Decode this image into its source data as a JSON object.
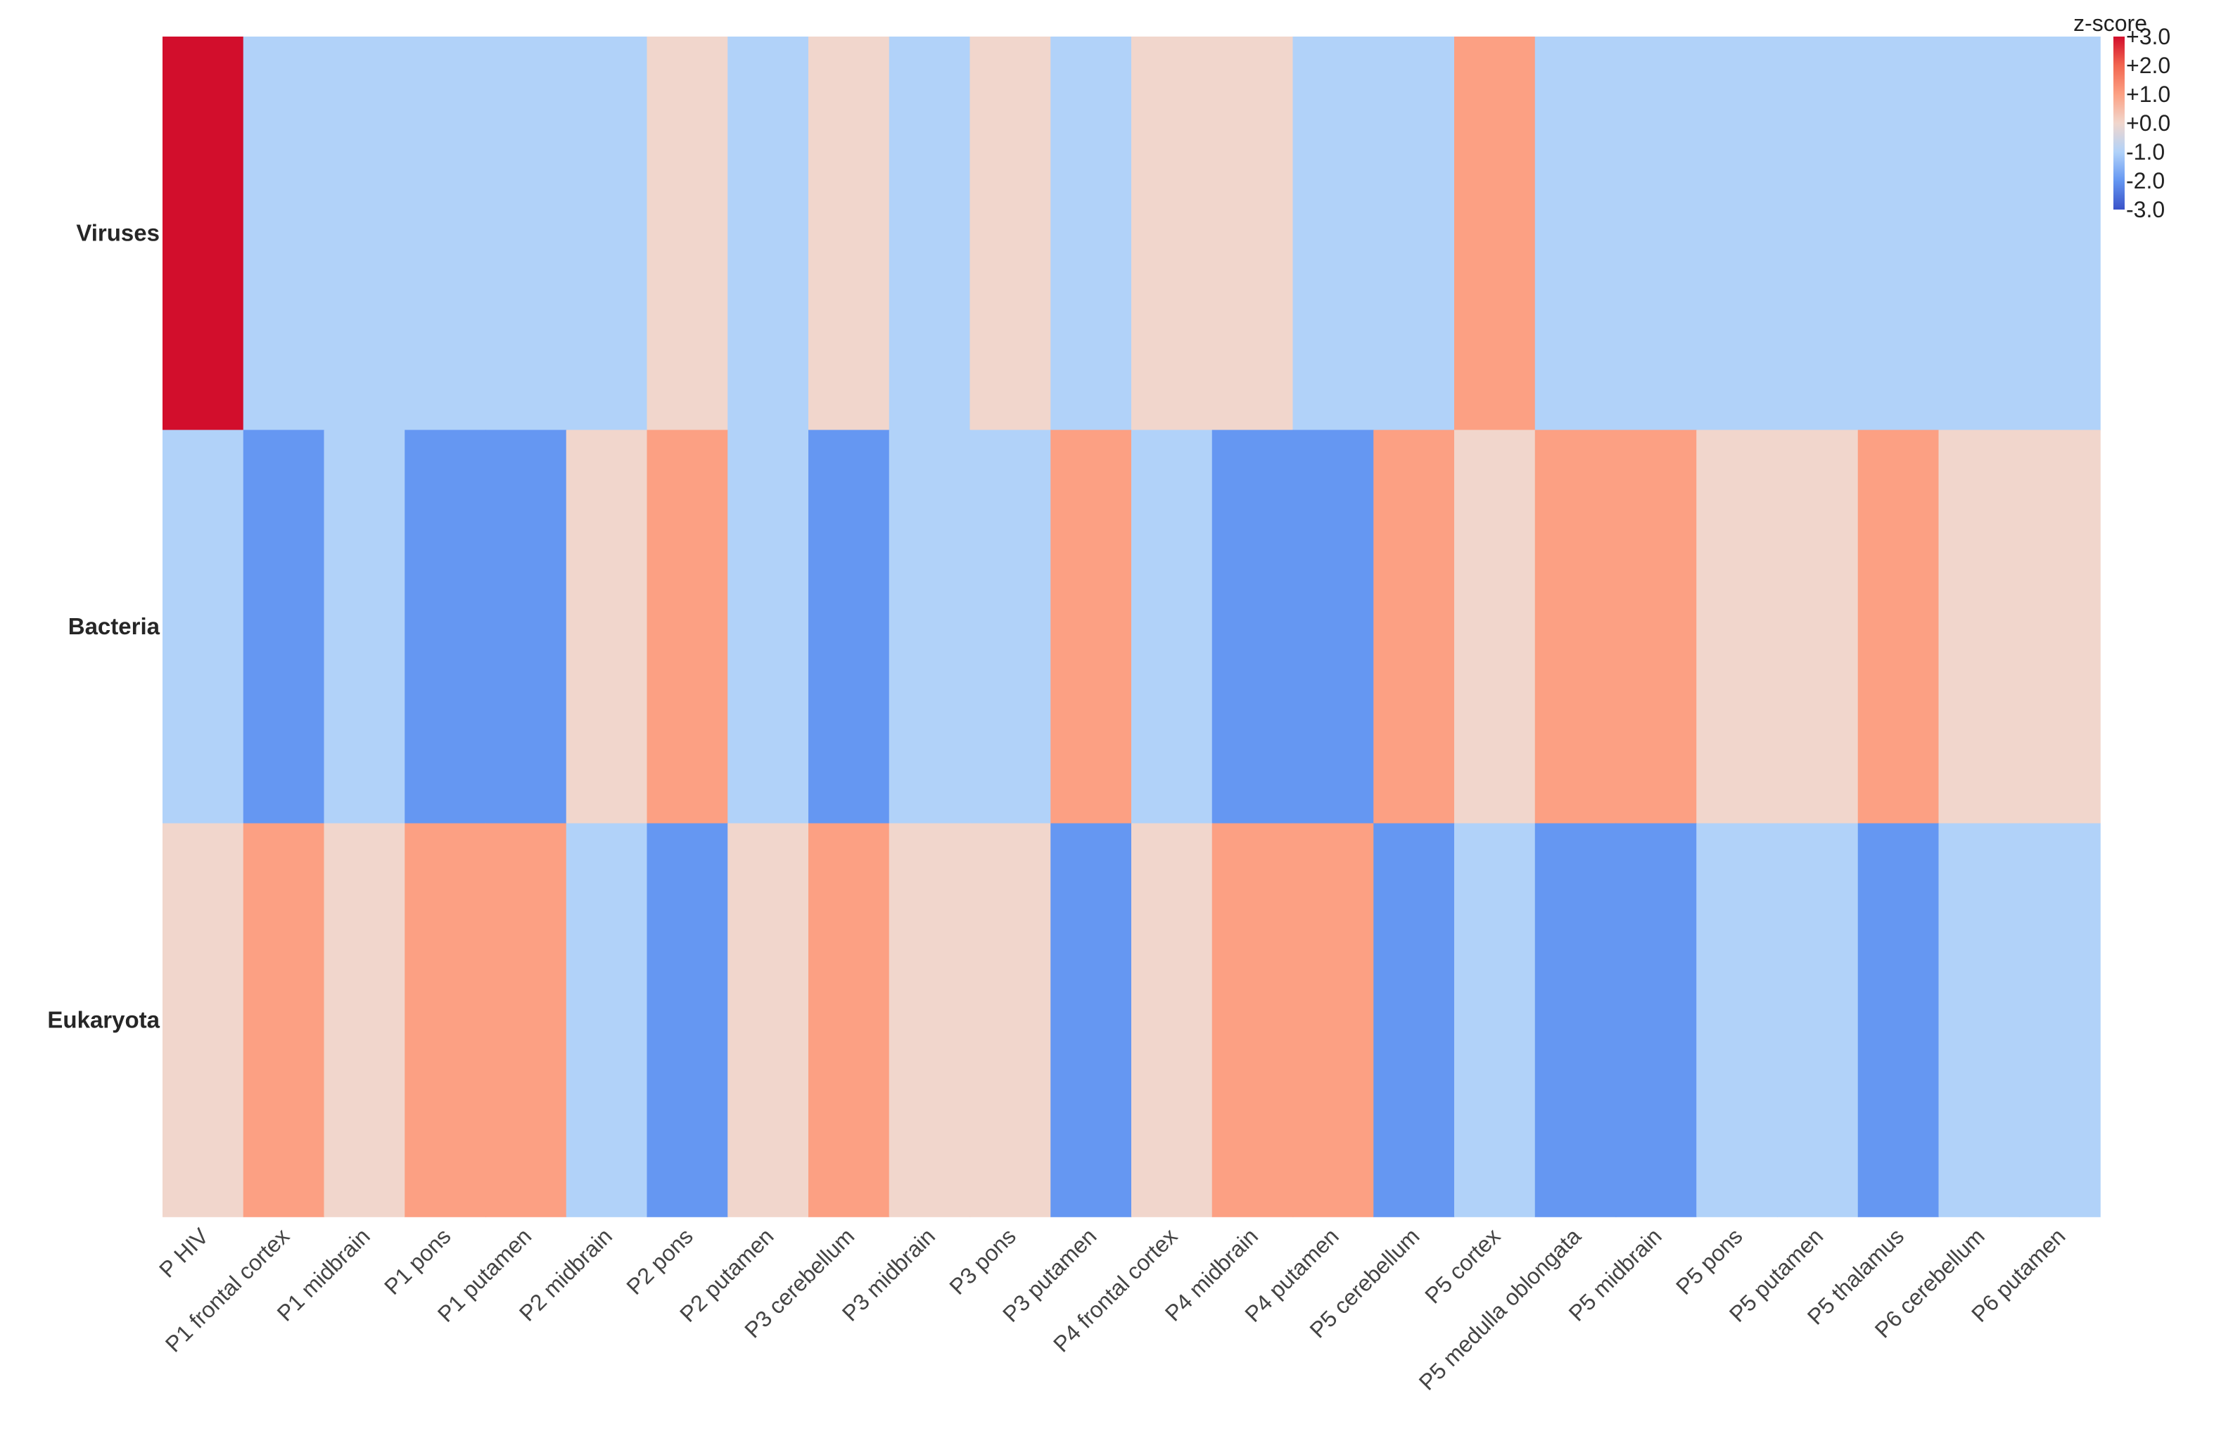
{
  "chart_data": {
    "type": "heatmap",
    "title": "",
    "rows": [
      "Viruses",
      "Bacteria",
      "Eukaryota"
    ],
    "columns": [
      "P HIV",
      "P1 frontal cortex",
      "P1 midbrain",
      "P1 pons",
      "P1 putamen",
      "P2 midbrain",
      "P2 pons",
      "P2 putamen",
      "P3 cerebellum",
      "P3 midbrain",
      "P3 pons",
      "P3 putamen",
      "P4 frontal cortex",
      "P4 midbrain",
      "P4 putamen",
      "P5 cerebellum",
      "P5 cortex",
      "P5 medulla oblongata",
      "P5 midbrain",
      "P5 pons",
      "P5 putamen",
      "P5 thalamus",
      "P6 cerebellum",
      "P6 putamen"
    ],
    "values": [
      [
        3,
        -1,
        -1,
        -1,
        -1,
        -1,
        0,
        -1,
        0,
        -1,
        0,
        -1,
        0,
        0,
        -1,
        -1,
        1,
        -1,
        -1,
        -1,
        -1,
        -1,
        -1,
        -1
      ],
      [
        -1,
        -2,
        -1,
        -2,
        -2,
        0,
        1,
        -1,
        -2,
        -1,
        -1,
        1,
        -1,
        -2,
        -2,
        1,
        0,
        1,
        1,
        0,
        0,
        1,
        0,
        0
      ],
      [
        0,
        1,
        0,
        1,
        1,
        -1,
        -2,
        0,
        1,
        0,
        0,
        -2,
        0,
        1,
        1,
        -2,
        -1,
        -2,
        -2,
        -1,
        -1,
        -2,
        -1,
        -1
      ]
    ],
    "colorbar": {
      "title": "z-score",
      "min": -3,
      "max": 3,
      "ticks": [
        "+3.0",
        "+2.0",
        "+1.0",
        "+0.0",
        "-1.0",
        "-2.0",
        "-3.0"
      ],
      "tick_values": [
        3,
        2,
        1,
        0,
        -1,
        -2,
        -3
      ]
    },
    "color_scale": {
      "3": "#d20e2c",
      "2": "#f26650",
      "1": "#fca083",
      "0": "#f1d6cc",
      "-1": "#b1d2f9",
      "-2": "#6597f2",
      "-3": "#3a52c9"
    },
    "legend_position": "top-right"
  }
}
